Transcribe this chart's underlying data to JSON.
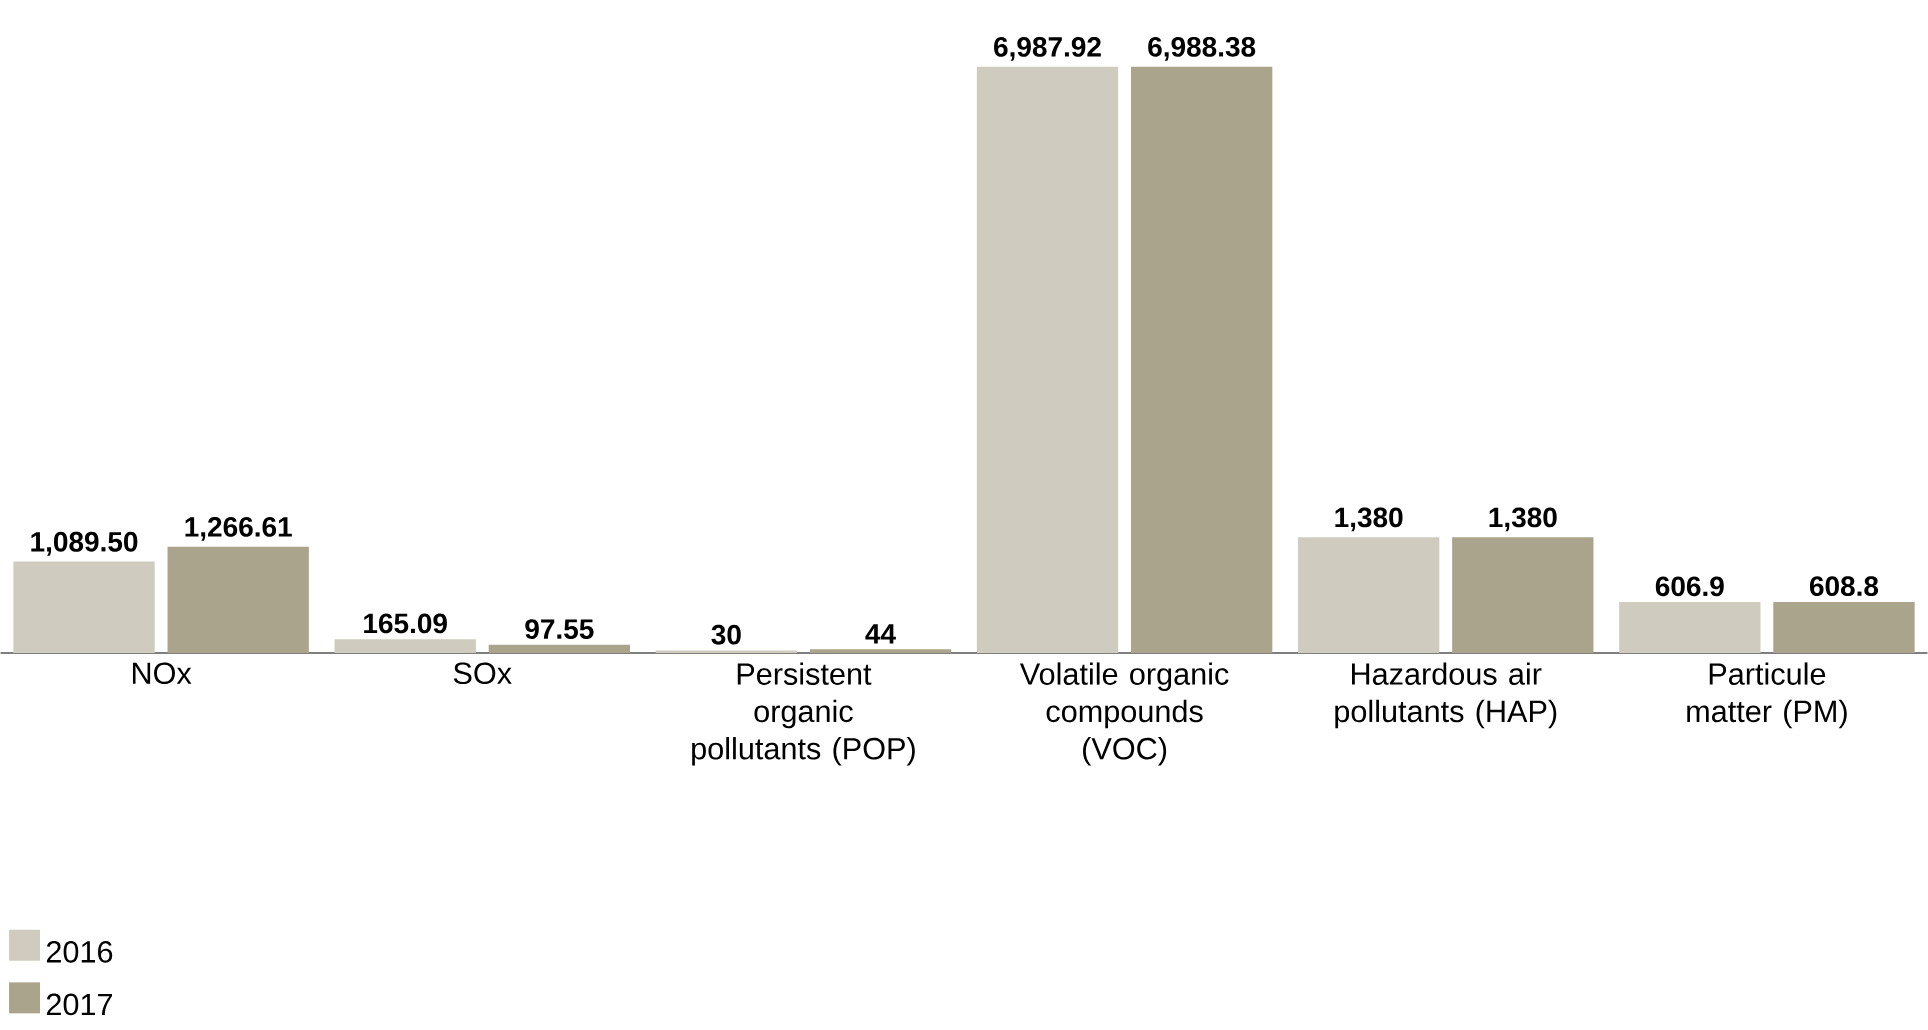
{
  "chart_data": {
    "type": "bar",
    "categories": [
      "NOx",
      "SOx",
      "Persistent organic pollutants (POP)",
      "Volatile organic compounds (VOC)",
      "Hazardous air pollutants (HAP)",
      "Particule matter (PM)"
    ],
    "series": [
      {
        "name": "2016",
        "color": "#cfcbbf",
        "values": [
          1089.5,
          165.09,
          30,
          6987.92,
          1380,
          606.9
        ],
        "value_labels": [
          "1,089.50",
          "165.09",
          "30",
          "6,987.92",
          "1,380",
          "606.9"
        ]
      },
      {
        "name": "2017",
        "color": "#a9a48b",
        "values": [
          1266.61,
          97.55,
          44,
          6988.38,
          1380,
          608.8
        ],
        "value_labels": [
          "1,266.61",
          "97.55",
          "44",
          "6,988.38",
          "1,380",
          "608.8"
        ]
      }
    ],
    "legend": "bottom left",
    "grid": false
  }
}
